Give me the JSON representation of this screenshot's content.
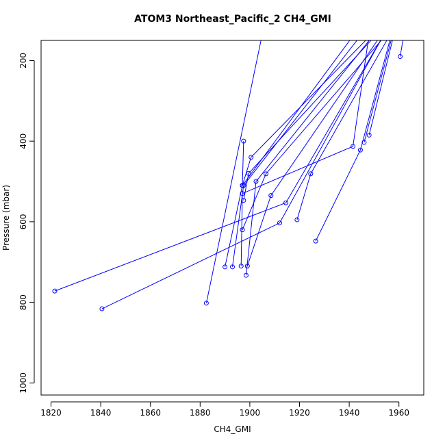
{
  "chart_data": {
    "type": "line",
    "title": "ATOM3 Northeast_Pacific_2 CH4_GMI",
    "xlabel": "CH4_GMI",
    "ylabel": "Pressure (mbar)",
    "xlim": [
      1816,
      1970
    ],
    "ylim": [
      1030,
      150
    ],
    "y_reversed": true,
    "grid": false,
    "legend": "none",
    "x_ticks": [
      1820,
      1840,
      1860,
      1880,
      1900,
      1920,
      1940,
      1960
    ],
    "y_ticks": [
      200,
      400,
      600,
      800,
      1000
    ],
    "series_color": "#0000ff",
    "marker": "open-circle",
    "series": [
      {
        "x": [
          1821.5,
          1914.5,
          1954.0
        ],
        "y": [
          772,
          553,
          135
        ]
      },
      {
        "x": [
          1840.5,
          1912.0,
          1954.0
        ],
        "y": [
          816,
          603,
          135
        ]
      },
      {
        "x": [
          1882.5,
          1905.0
        ],
        "y": [
          802,
          135
        ]
      },
      {
        "x": [
          1890.0,
          1897.0,
          1942.0
        ],
        "y": [
          712,
          510,
          135
        ]
      },
      {
        "x": [
          1893.0,
          1897.5,
          1945.0
        ],
        "y": [
          712,
          510,
          135
        ]
      },
      {
        "x": [
          1896.5,
          1897.0,
          1941.5,
          1948.0
        ],
        "y": [
          710,
          530,
          413,
          135
        ]
      },
      {
        "x": [
          1898.5,
          1902.5,
          1950.0
        ],
        "y": [
          733,
          500,
          135
        ]
      },
      {
        "x": [
          1899.0,
          1908.5,
          1953.0
        ],
        "y": [
          710,
          535,
          135
        ]
      },
      {
        "x": [
          1897.0,
          1906.5,
          1955.0
        ],
        "y": [
          620,
          481,
          135
        ]
      },
      {
        "x": [
          1897.5,
          1899.5,
          1951.0
        ],
        "y": [
          547,
          480,
          135
        ]
      },
      {
        "x": [
          1897.0,
          1900.5,
          1949.0
        ],
        "y": [
          510,
          440,
          135
        ]
      },
      {
        "x": [
          1897.5,
          1897.0
        ],
        "y": [
          400,
          510
        ]
      },
      {
        "x": [
          1919.0,
          1924.5,
          1956.5
        ],
        "y": [
          595,
          481,
          135
        ]
      },
      {
        "x": [
          1926.5,
          1944.5,
          1957.0
        ],
        "y": [
          648,
          422,
          135
        ]
      },
      {
        "x": [
          1946.0,
          1957.5
        ],
        "y": [
          403,
          135
        ]
      },
      {
        "x": [
          1948.0,
          1958.0
        ],
        "y": [
          385,
          135
        ]
      },
      {
        "x": [
          1960.5,
          1962.0
        ],
        "y": [
          190,
          135
        ]
      }
    ]
  }
}
